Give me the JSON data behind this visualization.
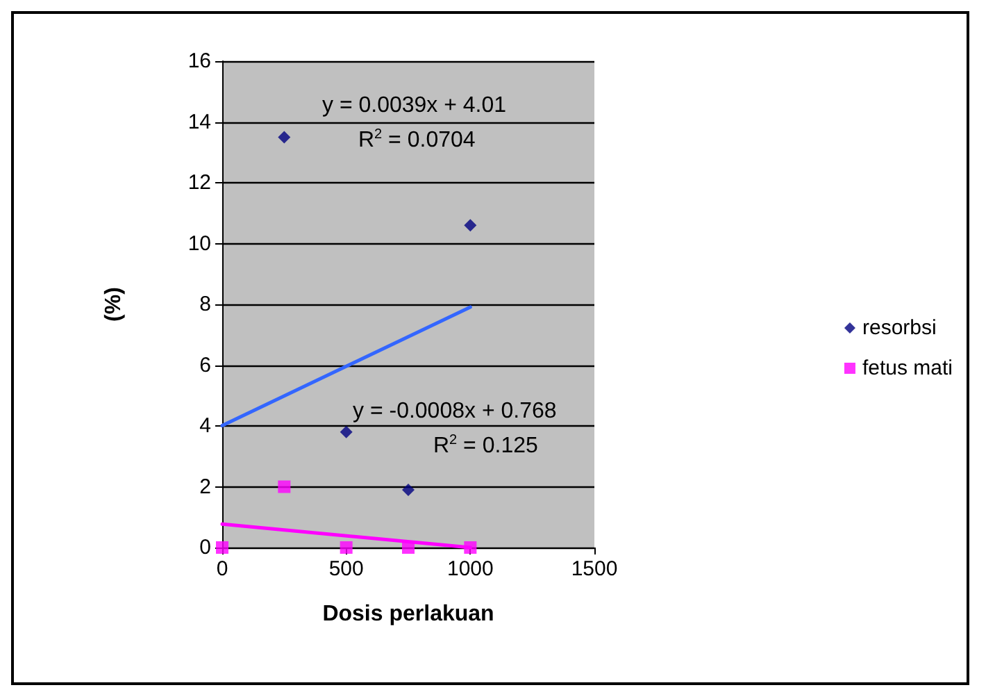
{
  "chart_data": {
    "type": "scatter",
    "xlabel": "Dosis perlakuan",
    "ylabel": "(%)",
    "xlim": [
      0,
      1500
    ],
    "xticks": [
      0,
      500,
      1000,
      1500
    ],
    "ylim": [
      0,
      16
    ],
    "yticks": [
      0,
      2,
      4,
      6,
      8,
      10,
      12,
      14,
      16
    ],
    "grid": "y",
    "legend": "right",
    "series": [
      {
        "name": "resorbsi",
        "color": "#000080",
        "marker": "diamond",
        "x": [
          250,
          500,
          750,
          1000
        ],
        "values": [
          13.5,
          3.8,
          1.9,
          10.6
        ]
      },
      {
        "name": "fetus mati",
        "color": "#ff00ff",
        "marker": "square",
        "x": [
          0,
          250,
          500,
          750,
          1000
        ],
        "values": [
          0,
          2,
          0,
          0,
          0
        ]
      },
      {
        "type": "line",
        "color": "#3366ff",
        "marker": "none",
        "x": [
          0,
          1000
        ],
        "values": [
          4.01,
          7.91
        ]
      },
      {
        "type": "line",
        "color": "#ff00ff",
        "marker": "none",
        "x": [
          0,
          1000
        ],
        "values": [
          0.77,
          0
        ]
      }
    ],
    "annotations": [
      "y = 0.0039x + 4.01",
      "R$^{2}$ = 0.0704",
      "y = -0.0008x + 0.768",
      "R$^{2}$ = 0.125"
    ]
  }
}
